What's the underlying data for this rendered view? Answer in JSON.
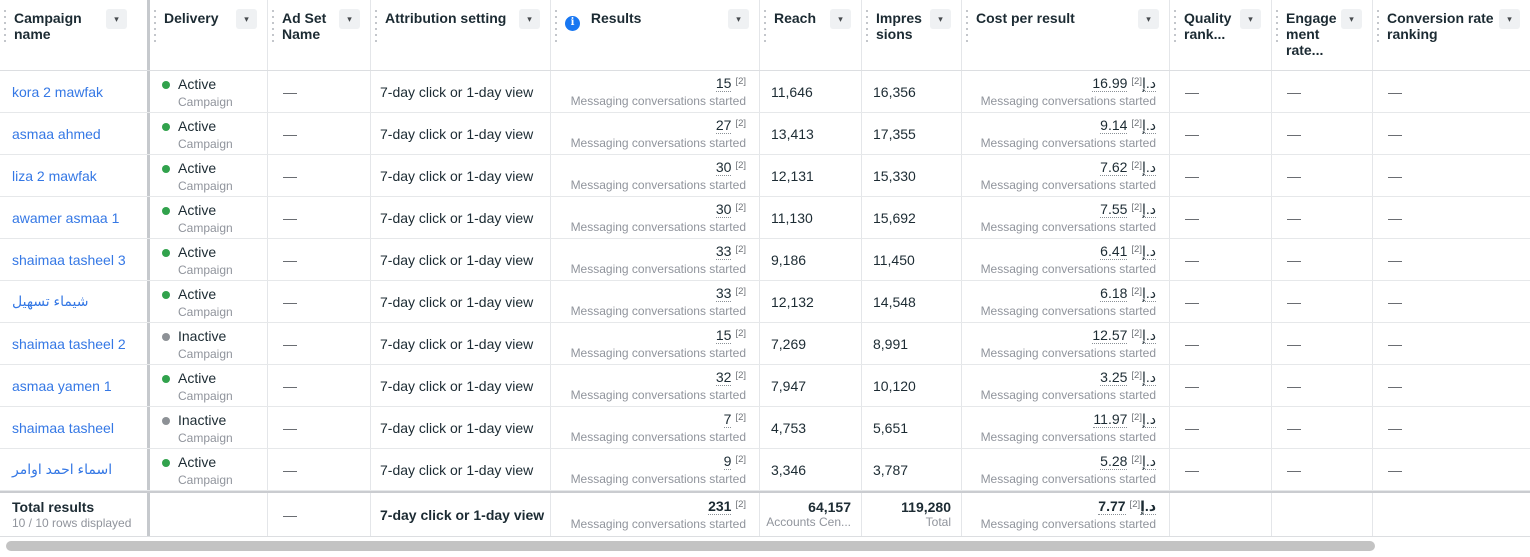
{
  "ui": {
    "dash": "—"
  },
  "columns": {
    "campaign": "Campaign name",
    "delivery": "Delivery",
    "adset": "Ad Set Name",
    "attribution": "Attribution setting",
    "results": "Results",
    "reach": "Reach",
    "impressions": "Impressions",
    "cost": "Cost per result",
    "quality": "Quality rank...",
    "engagement": "Engagement rate...",
    "conversion": "Conversion rate ranking",
    "info_icon_glyph": "i",
    "caret_glyph": "▾"
  },
  "labels": {
    "campaign_sub": "Campaign",
    "result_type": "Messaging conversations started",
    "footnote": "[2]",
    "currency": "د.إ",
    "attribution_value": "7-day click or 1-day view"
  },
  "rows": [
    {
      "name": "kora 2 mawfak",
      "status": "active",
      "status_label": "Active",
      "results": "15",
      "reach": "11,646",
      "impressions": "16,356",
      "cost": "16.99"
    },
    {
      "name": "asmaa ahmed",
      "status": "active",
      "status_label": "Active",
      "results": "27",
      "reach": "13,413",
      "impressions": "17,355",
      "cost": "9.14"
    },
    {
      "name": "liza 2 mawfak",
      "status": "active",
      "status_label": "Active",
      "results": "30",
      "reach": "12,131",
      "impressions": "15,330",
      "cost": "7.62"
    },
    {
      "name": "awamer asmaa 1",
      "status": "active",
      "status_label": "Active",
      "results": "30",
      "reach": "11,130",
      "impressions": "15,692",
      "cost": "7.55"
    },
    {
      "name": "shaimaa tasheel 3",
      "status": "active",
      "status_label": "Active",
      "results": "33",
      "reach": "9,186",
      "impressions": "11,450",
      "cost": "6.41"
    },
    {
      "name": "شيماء تسهيل",
      "status": "active",
      "status_label": "Active",
      "results": "33",
      "reach": "12,132",
      "impressions": "14,548",
      "cost": "6.18"
    },
    {
      "name": "shaimaa tasheel 2",
      "status": "inactive",
      "status_label": "Inactive",
      "results": "15",
      "reach": "7,269",
      "impressions": "8,991",
      "cost": "12.57"
    },
    {
      "name": "asmaa yamen 1",
      "status": "active",
      "status_label": "Active",
      "results": "32",
      "reach": "7,947",
      "impressions": "10,120",
      "cost": "3.25"
    },
    {
      "name": "shaimaa tasheel",
      "status": "inactive",
      "status_label": "Inactive",
      "results": "7",
      "reach": "4,753",
      "impressions": "5,651",
      "cost": "11.97"
    },
    {
      "name": "اسماء احمد اوامر",
      "status": "active",
      "status_label": "Active",
      "results": "9",
      "reach": "3,346",
      "impressions": "3,787",
      "cost": "5.28"
    }
  ],
  "totals": {
    "title": "Total results",
    "rows_displayed": "10 / 10 rows displayed",
    "attribution": "7-day click or 1-day view",
    "results": "231",
    "reach": "64,157",
    "reach_sub": "Accounts Cen...",
    "impressions": "119,280",
    "impressions_sub": "Total",
    "cost": "7.77"
  }
}
